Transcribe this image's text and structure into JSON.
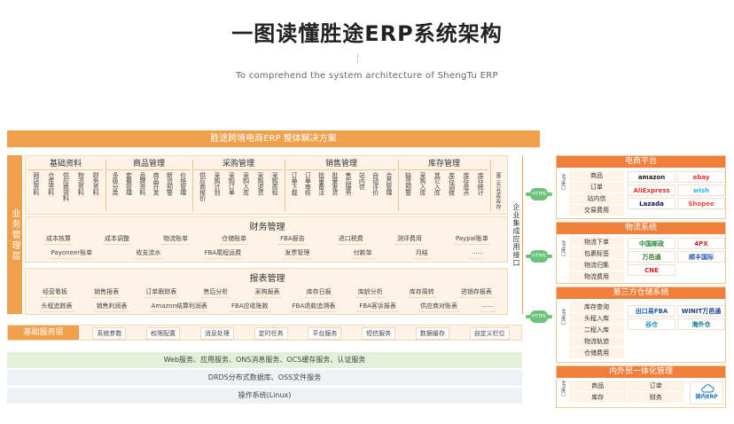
{
  "header": {
    "title": "一图读懂胜途ERP系统架构",
    "subtitle": "To comprehend the system architecture of ShengTu ERP"
  },
  "solution_banner": "胜途跨境电商ERP 整体解决方案",
  "business_layer": "业务管理层",
  "groups": [
    {
      "title": "基础资料",
      "items": [
        "网店资料",
        "仓库资料",
        "供应商资料",
        "物流资料",
        "财务资料"
      ]
    },
    {
      "title": "商品管理",
      "items": [
        "多级分类",
        "套餐管理",
        "品牌资料",
        "商品开发",
        "断货预警",
        "价格管理"
      ]
    },
    {
      "title": "采购管理",
      "items": [
        "供应商报价",
        "采购计划",
        "采购订单",
        "采购入库",
        "采购退货",
        "采购质检"
      ]
    },
    {
      "title": "销售管理",
      "items": [
        "订单下载",
        "订单审核",
        "批量备注",
        "批量发货",
        "售后服务",
        "站内信",
        "自动评价",
        "会员管理"
      ]
    },
    {
      "title": "库存管理",
      "items": [
        "缺货预警",
        "采购入库",
        "其它入库",
        "库存调拨",
        "库存盘点",
        "库存统计"
      ]
    }
  ],
  "side_extra": "第三方仓库库存",
  "finance": {
    "title": "财务管理",
    "row1": [
      "成本核算",
      "成本调整",
      "物流账单",
      "仓储账单",
      "FBA报告",
      "进口税费",
      "测评费用",
      "Paypal账单"
    ],
    "row2": [
      "Payoneer账单",
      "收支流水",
      "FBA尾程运费",
      "发票管理",
      "付款单",
      "月结",
      "......"
    ]
  },
  "reports": {
    "title": "报表管理",
    "row1": [
      "经营看板",
      "销售报表",
      "订单跟踪表",
      "售后分析",
      "采购报表",
      "库存日报",
      "库龄分析",
      "库存周转",
      "进销存报表"
    ],
    "row2": [
      "头程追踪表",
      "销售利润表",
      "Amazon结算利润表",
      "FBA应收账款",
      "FBA退款追溯表",
      "FBA客诉报表",
      "供应商对账表",
      "......"
    ]
  },
  "enterprise_side": "企业集成应用接口",
  "base_service": {
    "label": "基础服务层",
    "items": [
      "系统参数",
      "权限配置",
      "消息处理",
      "定时任务",
      "平台服务",
      "短信服务",
      "数据缓存",
      "自定义栏位"
    ]
  },
  "infra": [
    "Web服务、应用服务、ONS消息服务、OCS缓存服务、认证服务",
    "DRDS分布式数据库、OSS文件服务",
    "操作系统(Linux)"
  ],
  "https_label": "HTTPS",
  "api_label": "API接口",
  "right": {
    "ecommerce": {
      "title": "电商平台",
      "items": [
        "商品",
        "订单",
        "站内信",
        "交易费用"
      ],
      "logos": [
        "amazon",
        "ebay",
        "AliExpress",
        "wish",
        "Lazada",
        "Shopee"
      ]
    },
    "logistics": {
      "title": "物流系统",
      "items": [
        "物流下单",
        "包裹标签",
        "物流归集",
        "物流费用"
      ],
      "logos": [
        "中国邮政",
        "4PX",
        "万邑通",
        "顺丰国际",
        "CNE"
      ]
    },
    "warehouse": {
      "title": "第三方仓储系统",
      "items": [
        "库存查询",
        "头程入库",
        "二程入库",
        "物流轨迹",
        "仓储费用"
      ],
      "logos": [
        "出口易FBA",
        "WINIT万邑通",
        "谷仓",
        "海外仓"
      ]
    },
    "domestic": {
      "title": "内外贸一体化管理",
      "items": [
        "商品",
        "订单",
        "库存",
        "财务"
      ],
      "logo": "国内ERP"
    }
  }
}
